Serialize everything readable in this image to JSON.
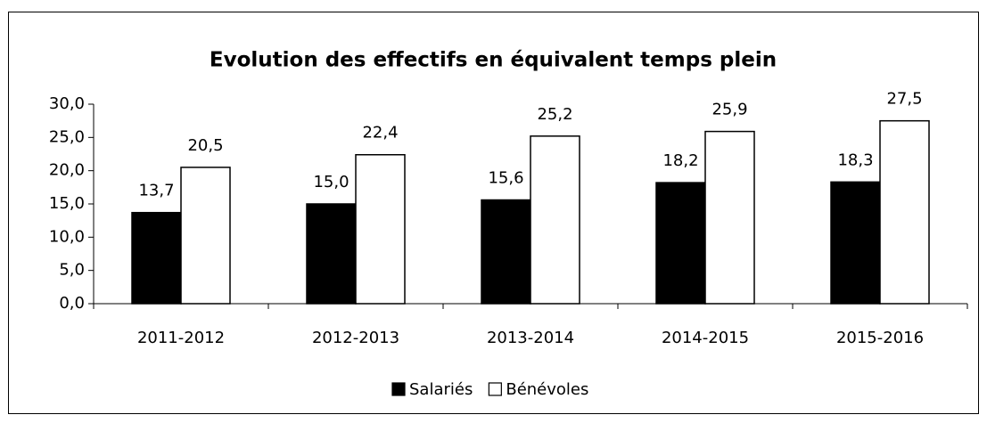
{
  "chart_data": {
    "type": "bar",
    "title": "Evolution des effectifs en équivalent temps plein",
    "categories": [
      "2011-2012",
      "2012-2013",
      "2013-2014",
      "2014-2015",
      "2015-2016"
    ],
    "series": [
      {
        "name": "Salariés",
        "color": "#000000",
        "values": [
          13.7,
          15.0,
          15.6,
          18.2,
          18.3
        ],
        "value_labels": [
          "13,7",
          "15,0",
          "15,6",
          "18,2",
          "18,3"
        ]
      },
      {
        "name": "Bénévoles",
        "color": "#ffffff",
        "values": [
          20.5,
          22.4,
          25.2,
          25.9,
          27.5
        ],
        "value_labels": [
          "20,5",
          "22,4",
          "25,2",
          "25,9",
          "27,5"
        ]
      }
    ],
    "ylim": [
      0,
      30
    ],
    "yticks": [
      {
        "value": 0,
        "label": "0,0"
      },
      {
        "value": 5,
        "label": "5,0"
      },
      {
        "value": 10,
        "label": "10,0"
      },
      {
        "value": 15,
        "label": "15,0"
      },
      {
        "value": 20,
        "label": "20,0"
      },
      {
        "value": 25,
        "label": "25,0"
      },
      {
        "value": 30,
        "label": "30,0"
      }
    ],
    "legend": "bottom"
  }
}
